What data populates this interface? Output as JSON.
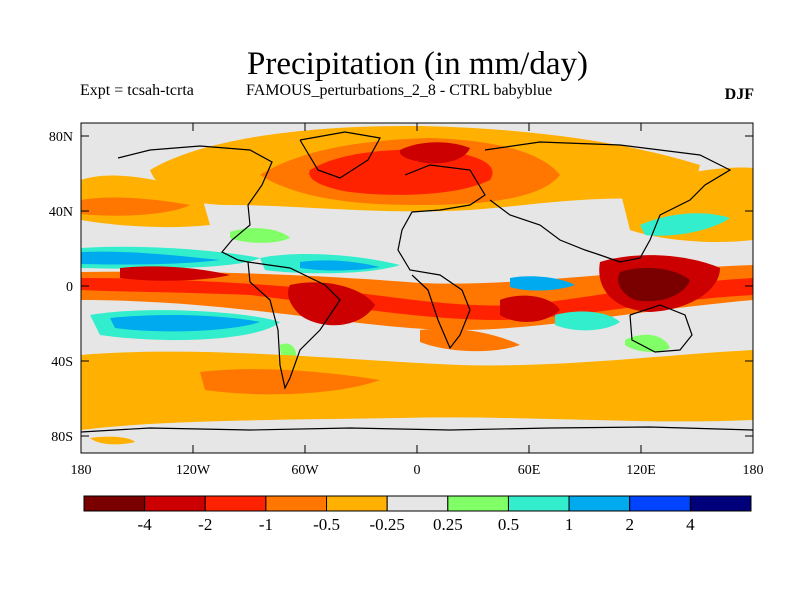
{
  "title": "Precipitation (in mm/day)",
  "subtitle_left": "Expt = tcsah-tcrta",
  "subtitle_center": "FAMOUS_perturbations_2_8 - CTRL babyblue",
  "subtitle_right": "DJF",
  "map": {
    "lat_ticks": [
      "80N",
      "40N",
      "0",
      "40S",
      "80S"
    ],
    "lon_ticks": [
      "180",
      "120W",
      "60W",
      "0",
      "60E",
      "120E",
      "180"
    ],
    "lat_range": [
      -90,
      90
    ],
    "lon_range": [
      -180,
      180
    ]
  },
  "colorbar": {
    "labels": [
      "-4",
      "-2",
      "-1",
      "-0.5",
      "-0.25",
      "0.25",
      "0.5",
      "1",
      "2",
      "4"
    ],
    "colors": [
      "#7a0000",
      "#cc0000",
      "#ff2200",
      "#ff7700",
      "#ffb000",
      "#e6e6e6",
      "#80ff66",
      "#33eecc",
      "#00aaee",
      "#0044ff",
      "#00007a"
    ]
  }
}
